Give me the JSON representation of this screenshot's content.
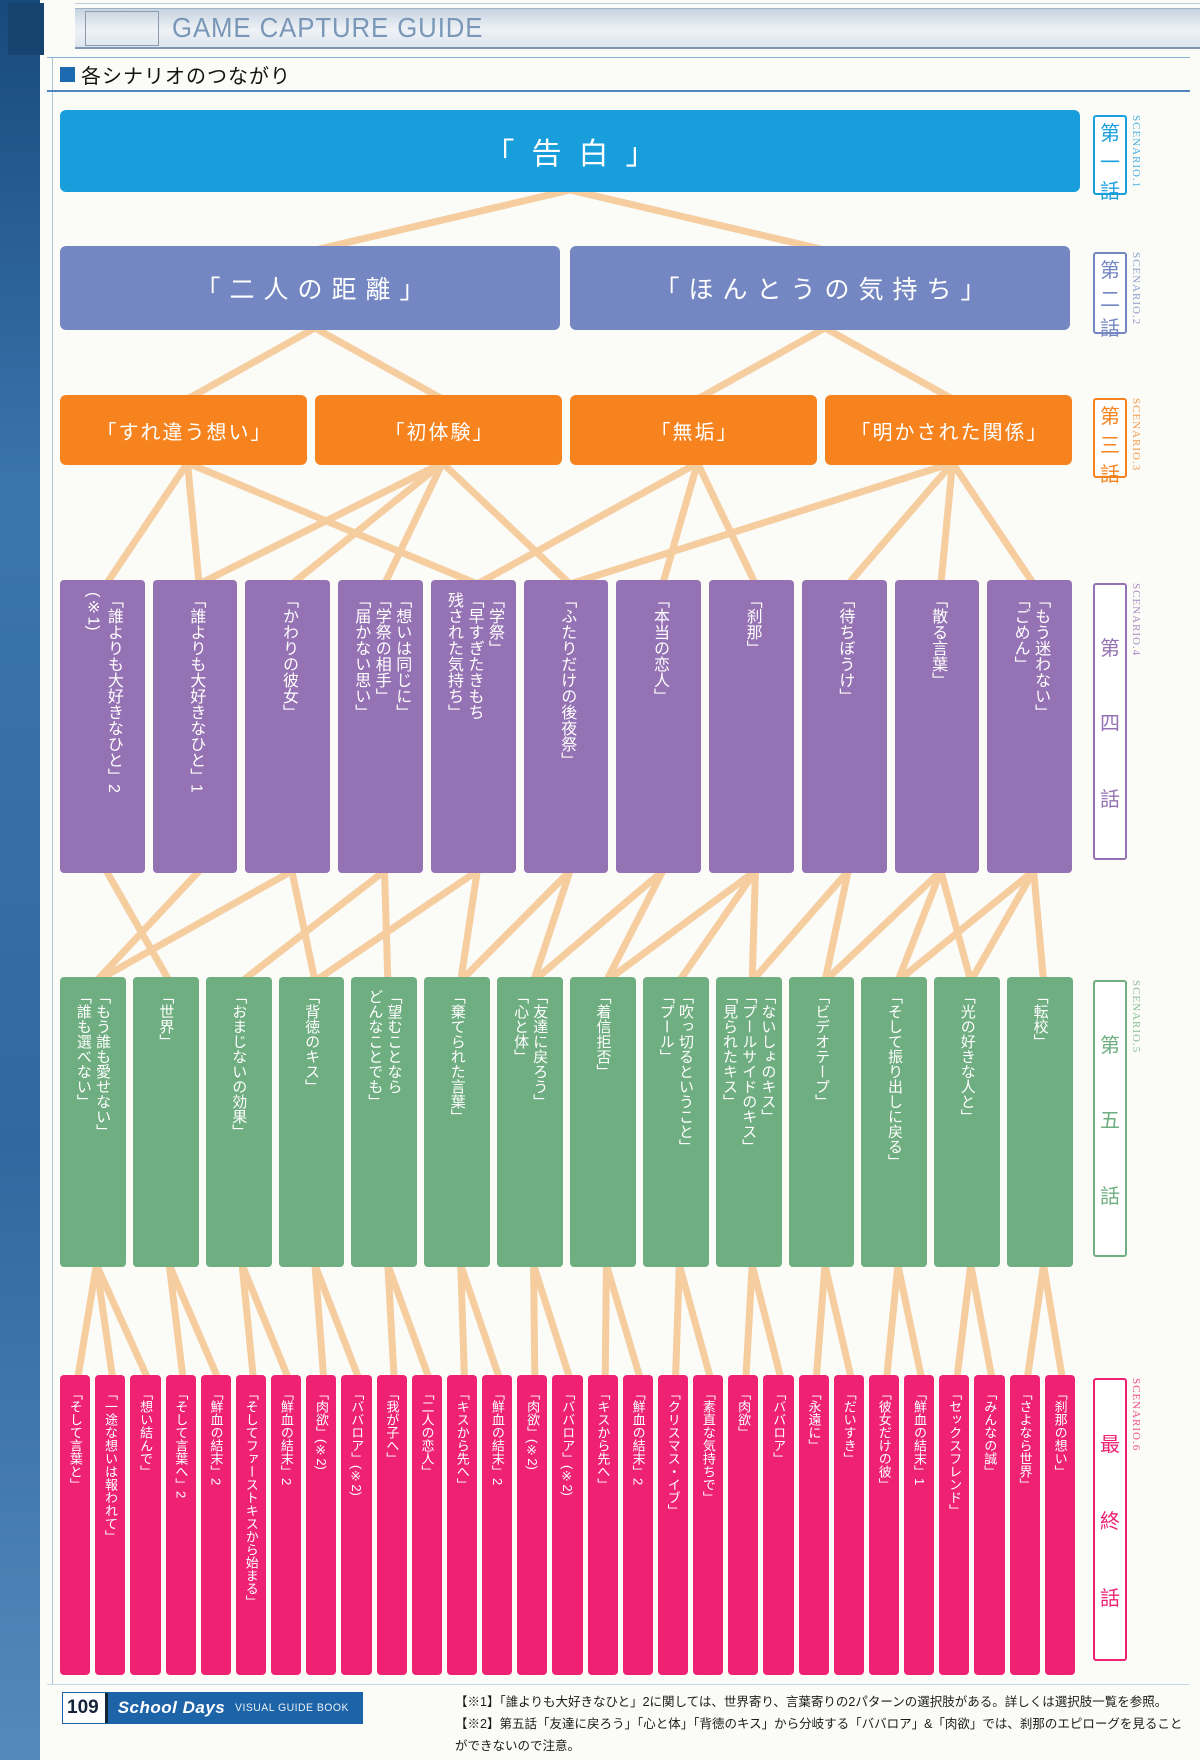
{
  "header": {
    "title": "GAME CAPTURE GUIDE"
  },
  "section_title": "各シナリオのつながり",
  "colors": {
    "s1": "#189FDB",
    "s2": "#7487C2",
    "s3": "#F6831E",
    "s4": "#9572B3",
    "s5": "#6FAE80",
    "s6": "#EE2173",
    "connector": "#F5CD9F",
    "accent": "#1D63A8"
  },
  "rows": [
    {
      "color": "s1",
      "label": "第一話",
      "scenario": "SCENARIO.1",
      "items": [
        "「告白」"
      ]
    },
    {
      "color": "s2",
      "label": "第二話",
      "scenario": "SCENARIO.2",
      "items": [
        "「二人の距離」",
        "「ほんとうの気持ち」"
      ]
    },
    {
      "color": "s3",
      "label": "第三話",
      "scenario": "SCENARIO.3",
      "items": [
        "「すれ違う想い」",
        "「初体験」",
        "「無垢」",
        "「明かされた関係」"
      ]
    },
    {
      "color": "s4",
      "label": "第四話",
      "scenario": "SCENARIO.4",
      "items": [
        "「誰よりも大好きなひと」2\n(※1)",
        "「誰よりも大好きなひと」1",
        "「かわりの彼女」",
        "「想いは同じに」\n「学祭の相手」\n「届かない思い」",
        "「学祭」\n「早すぎたきもち\n残された気持ち」",
        "「ふたりだけの後夜祭」",
        "「本当の恋人」",
        "「刹那」",
        "「待ちぼうけ」",
        "「散る言葉」",
        "「もう迷わない」\n「ごめん」"
      ]
    },
    {
      "color": "s5",
      "label": "第五話",
      "scenario": "SCENARIO.5",
      "items": [
        "「もう誰も愛せない」\n「誰も選べない」",
        "「世界」",
        "「おまじないの効果」",
        "「背徳のキス」",
        "「望むことなら\nどんなことでも」",
        "「棄てられた言葉」",
        "「友達に戻ろう」\n「心と体」",
        "「着信拒否」",
        "「吹っ切るということ」\n「プール」",
        "「ないしょのキス」\n「プールサイドのキス」\n「見られたキス」",
        "「ビデオテープ」",
        "「そして振り出しに戻る」",
        "「光の好きな人と」",
        "「転校」"
      ]
    },
    {
      "color": "s6",
      "label": "最終話",
      "scenario": "SCENARIO.6",
      "items": [
        "「そして言葉と」",
        "「一途な想いは報われて」",
        "「想い結んで」",
        "「そして言葉へ」2",
        "「鮮血の結末」2",
        "「そしてファーストキスから始まる」",
        "「鮮血の結末」2",
        "「肉欲」(※2)",
        "「ババロア」(※2)",
        "「我が子へ」",
        "「二人の恋人」",
        "「キスから先へ」",
        "「鮮血の結末」2",
        "「肉欲」(※2)",
        "「ババロア」(※2)",
        "「キスから先へ」",
        "「鮮血の結末」2",
        "「クリスマス・イブ」",
        "「素直な気持ちで」",
        "「肉欲」",
        "「ババロア」",
        "「永遠に」",
        "「だいすき」",
        "「彼女だけの彼」",
        "「鮮血の結末」1",
        "「セックスフレンド」",
        "「みんなの誠」",
        "「さよなら世界」",
        "「刹那の想い」"
      ]
    }
  ],
  "edges": {
    "0-1": [
      [
        0,
        0
      ],
      [
        0,
        1
      ]
    ],
    "1-2": [
      [
        0,
        0
      ],
      [
        0,
        1
      ],
      [
        1,
        2
      ],
      [
        1,
        3
      ]
    ],
    "2-3": [
      [
        0,
        0
      ],
      [
        0,
        1
      ],
      [
        0,
        4
      ],
      [
        1,
        1
      ],
      [
        1,
        2
      ],
      [
        1,
        3
      ],
      [
        1,
        5
      ],
      [
        2,
        4
      ],
      [
        2,
        6
      ],
      [
        2,
        7
      ],
      [
        3,
        5
      ],
      [
        3,
        8
      ],
      [
        3,
        9
      ],
      [
        3,
        10
      ]
    ],
    "3-4": [
      [
        0,
        1
      ],
      [
        1,
        0
      ],
      [
        2,
        0
      ],
      [
        2,
        3
      ],
      [
        3,
        2
      ],
      [
        3,
        4
      ],
      [
        4,
        3
      ],
      [
        4,
        5
      ],
      [
        5,
        5
      ],
      [
        5,
        6
      ],
      [
        6,
        6
      ],
      [
        6,
        7
      ],
      [
        7,
        7
      ],
      [
        7,
        8
      ],
      [
        7,
        9
      ],
      [
        8,
        9
      ],
      [
        8,
        10
      ],
      [
        9,
        10
      ],
      [
        9,
        11
      ],
      [
        9,
        12
      ],
      [
        10,
        11
      ],
      [
        10,
        12
      ],
      [
        10,
        13
      ]
    ],
    "4-5": [
      [
        0,
        0
      ],
      [
        0,
        1
      ],
      [
        0,
        2
      ],
      [
        1,
        3
      ],
      [
        1,
        4
      ],
      [
        2,
        5
      ],
      [
        2,
        6
      ],
      [
        3,
        7
      ],
      [
        3,
        8
      ],
      [
        4,
        9
      ],
      [
        4,
        10
      ],
      [
        5,
        11
      ],
      [
        5,
        12
      ],
      [
        6,
        13
      ],
      [
        6,
        14
      ],
      [
        7,
        15
      ],
      [
        7,
        16
      ],
      [
        8,
        17
      ],
      [
        8,
        18
      ],
      [
        9,
        19
      ],
      [
        9,
        20
      ],
      [
        10,
        21
      ],
      [
        10,
        22
      ],
      [
        11,
        23
      ],
      [
        11,
        24
      ],
      [
        12,
        25
      ],
      [
        12,
        26
      ],
      [
        13,
        27
      ],
      [
        13,
        28
      ]
    ]
  },
  "footer": {
    "page_number": "109",
    "book_title": "School Days",
    "book_subtitle": "VISUAL GUIDE BOOK",
    "note1": "【※1】「誰よりも大好きなひと」2に関しては、世界寄り、言葉寄りの2パターンの選択肢がある。詳しくは選択肢一覧を参照。",
    "note2": "【※2】第五話「友達に戻ろう」「心と体」「背徳のキス」から分岐する「ババロア」&「肉欲」では、刹那のエピローグを見ることができないので注意。"
  }
}
